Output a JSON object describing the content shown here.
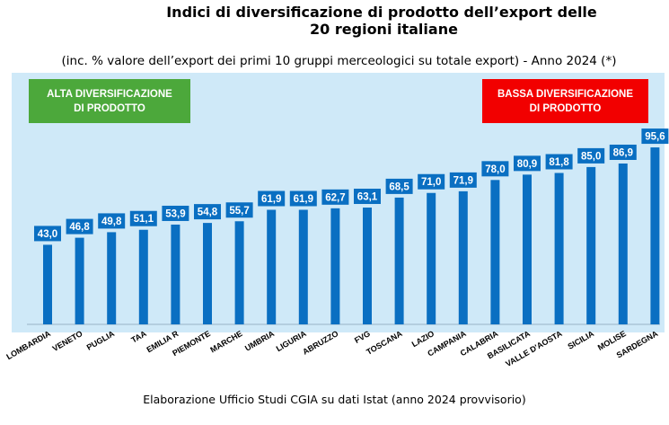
{
  "title_line1": "Indici di diversificazione di prodotto dell’export delle",
  "title_line2": "20 regioni italiane",
  "subtitle": "(inc. % valore dell’export dei primi 10 gruppi merceologici su totale export) - Anno 2024 (*)",
  "badge_high": "ALTA DIVERSIFICAZIONE\nDI PRODOTTO",
  "badge_low": "BASSA DIVERSIFICAZIONE\nDI PRODOTTO",
  "footer": "Elaborazione Ufficio Studi CGIA su dati Istat (anno 2024 provvisorio)",
  "colors": {
    "bar": "#0a6fc2",
    "plot_background": "#cfe9f8",
    "high_badge": "#4ca83b",
    "low_badge": "#f20000"
  },
  "chart_data": {
    "type": "bar",
    "categories": [
      "LOMBARDIA",
      "VENETO",
      "PUGLIA",
      "TAA",
      "EMILIA R",
      "PIEMONTE",
      "MARCHE",
      "UMBRIA",
      "LIGURIA",
      "ABRUZZO",
      "FVG",
      "TOSCANA",
      "LAZIO",
      "CAMPANIA",
      "CALABRIA",
      "BASILICATA",
      "VALLE D'AOSTA",
      "SICILIA",
      "MOLISE",
      "SARDEGNA"
    ],
    "values": [
      43.0,
      46.8,
      49.8,
      51.1,
      53.9,
      54.8,
      55.7,
      61.9,
      61.9,
      62.7,
      63.1,
      68.5,
      71.0,
      71.9,
      78.0,
      80.9,
      81.8,
      85.0,
      86.9,
      95.6
    ],
    "value_labels": [
      "43,0",
      "46,8",
      "49,8",
      "51,1",
      "53,9",
      "54,8",
      "55,7",
      "61,9",
      "61,9",
      "62,7",
      "63,1",
      "68,5",
      "71,0",
      "71,9",
      "78,0",
      "80,9",
      "81,8",
      "85,0",
      "86,9",
      "95,6"
    ],
    "ylim": [
      0,
      100
    ],
    "grid": false,
    "legend": "none"
  }
}
